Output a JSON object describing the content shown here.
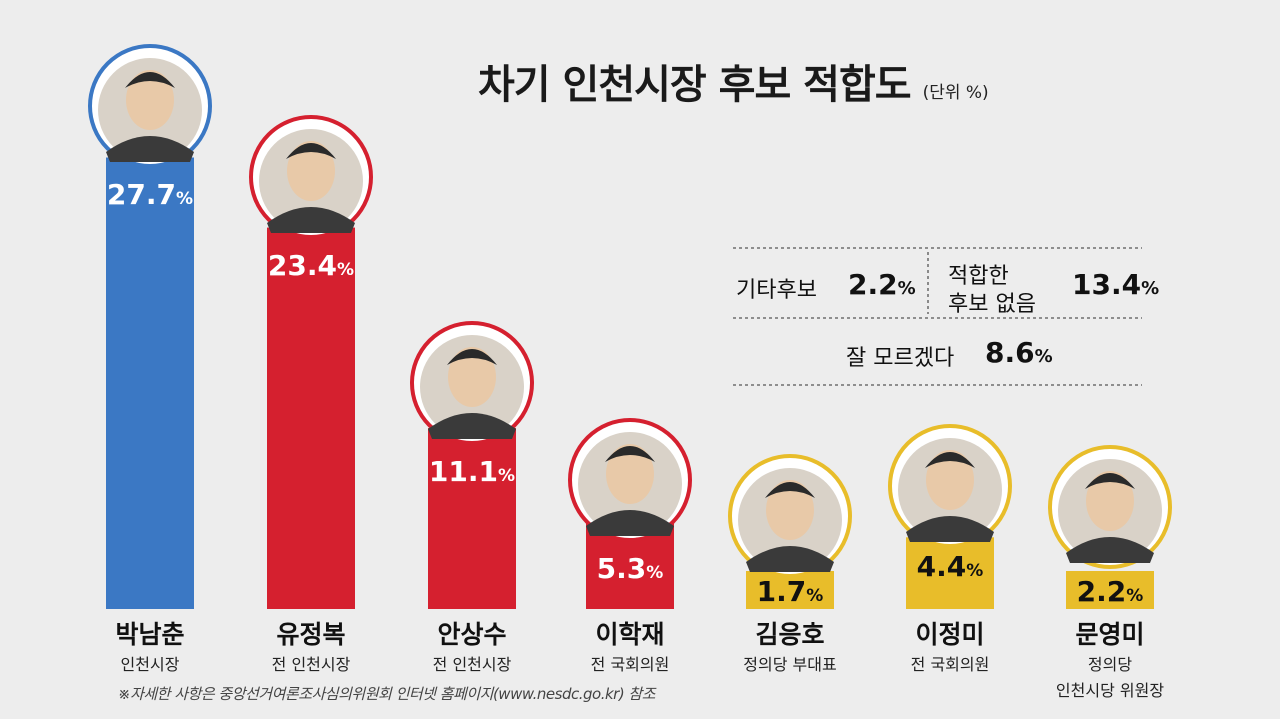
{
  "title": "차기 인천시장 후보 적합도",
  "unit": "(단위 %)",
  "note": "※자세한 사항은 중앙선거여론조사심의위원회 인터넷 홈페이지(www.nesdc.go.kr) 참조",
  "others": {
    "etc_label": "기타후보",
    "etc_value": "2.2",
    "none_label_1": "적합한",
    "none_label_2": "후보 없음",
    "none_value": "13.4",
    "dk_label": "잘 모르겠다",
    "dk_value": "8.6",
    "pct_sign": "%"
  },
  "colors": {
    "blue": "#3b78c4",
    "red": "#d5202f",
    "yellow": "#e8bd2a"
  },
  "chart_data": {
    "type": "bar",
    "title": "차기 인천시장 후보 적합도",
    "unit": "%",
    "categories": [
      "박남춘",
      "유정복",
      "안상수",
      "이학재",
      "김응호",
      "이정미",
      "문영미"
    ],
    "values": [
      27.7,
      23.4,
      11.1,
      5.3,
      1.7,
      4.4,
      2.2
    ],
    "subtitles": [
      [
        "인천시장"
      ],
      [
        "전 인천시장"
      ],
      [
        "전 인천시장"
      ],
      [
        "전 국회의원"
      ],
      [
        "정의당 부대표"
      ],
      [
        "전 국회의원"
      ],
      [
        "정의당",
        "인천시당 위원장"
      ]
    ],
    "bar_colors": [
      "blue",
      "red",
      "red",
      "red",
      "yellow",
      "yellow",
      "yellow"
    ]
  }
}
